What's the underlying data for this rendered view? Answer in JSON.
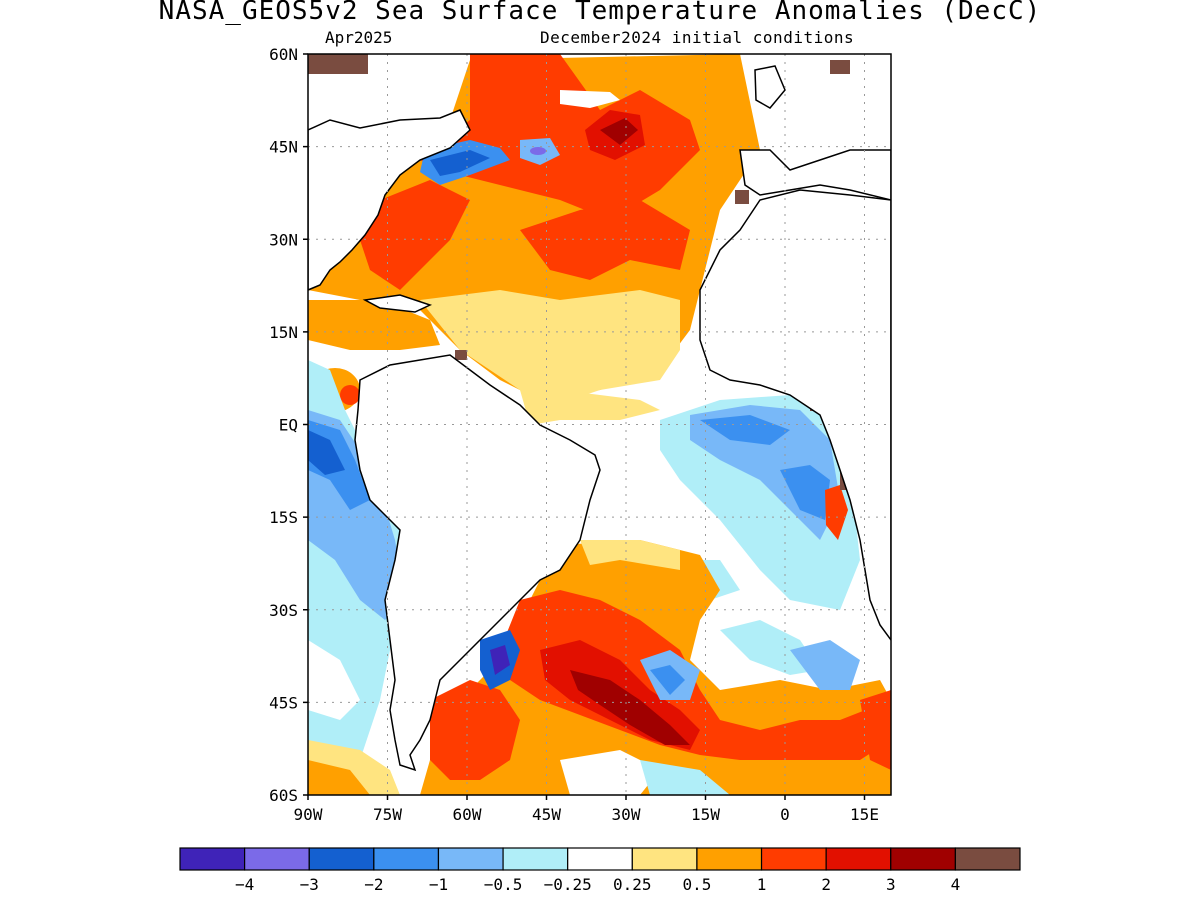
{
  "title": "NASA_GEOS5v2 Sea Surface Temperature Anomalies (DecC)",
  "subtitle_left": "Apr2025",
  "subtitle_right": "December2024 initial conditions",
  "map": {
    "lon_range": [
      -90,
      20
    ],
    "lat_range": [
      -60,
      60
    ],
    "lat_ticks": [
      {
        "value": 60,
        "label": "60N"
      },
      {
        "value": 45,
        "label": "45N"
      },
      {
        "value": 30,
        "label": "30N"
      },
      {
        "value": 15,
        "label": "15N"
      },
      {
        "value": 0,
        "label": "EQ"
      },
      {
        "value": -15,
        "label": "15S"
      },
      {
        "value": -30,
        "label": "30S"
      },
      {
        "value": -45,
        "label": "45S"
      },
      {
        "value": -60,
        "label": "60S"
      }
    ],
    "lon_ticks": [
      {
        "value": -90,
        "label": "90W"
      },
      {
        "value": -75,
        "label": "75W"
      },
      {
        "value": -60,
        "label": "60W"
      },
      {
        "value": -45,
        "label": "45W"
      },
      {
        "value": -30,
        "label": "30W"
      },
      {
        "value": -15,
        "label": "15W"
      },
      {
        "value": 0,
        "label": "0"
      },
      {
        "value": 15,
        "label": "15E"
      }
    ],
    "grid": true
  },
  "colorbar": {
    "colors": [
      "#3f23b8",
      "#7b6ae8",
      "#1460d0",
      "#3b90f0",
      "#78b8f8",
      "#b0eef8",
      "#ffffff",
      "#ffe480",
      "#ffa000",
      "#ff3c00",
      "#e21000",
      "#a00000",
      "#7a4c40"
    ],
    "labels": [
      "−4",
      "−3",
      "−2",
      "−1",
      "−0.5",
      "−0.25",
      "0.25",
      "0.5",
      "1",
      "2",
      "3",
      "4"
    ]
  }
}
